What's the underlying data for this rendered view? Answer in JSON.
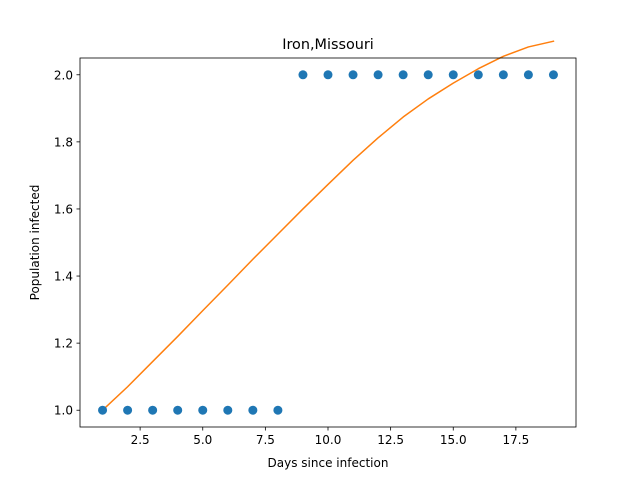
{
  "chart_data": {
    "type": "scatter",
    "title": "Iron,Missouri",
    "xlabel": "Days since infection",
    "ylabel": "Population infected",
    "xlim": [
      0.1,
      19.9
    ],
    "ylim": [
      0.95,
      2.05
    ],
    "x_ticks": [
      2.5,
      5.0,
      7.5,
      10.0,
      12.5,
      15.0,
      17.5
    ],
    "x_tick_labels": [
      "2.5",
      "5.0",
      "7.5",
      "10.0",
      "12.5",
      "15.0",
      "17.5"
    ],
    "y_ticks": [
      1.0,
      1.2,
      1.4,
      1.6,
      1.8,
      2.0
    ],
    "y_tick_labels": [
      "1.0",
      "1.2",
      "1.4",
      "1.6",
      "1.8",
      "2.0"
    ],
    "grid": false,
    "colors": {
      "points": "#1f77b4",
      "fit": "#ff7f0e"
    },
    "series": [
      {
        "kind": "scatter",
        "x": [
          1,
          2,
          3,
          4,
          5,
          6,
          7,
          8,
          9,
          10,
          11,
          12,
          13,
          14,
          15,
          16,
          17,
          18,
          19
        ],
        "y": [
          1,
          1,
          1,
          1,
          1,
          1,
          1,
          1,
          2,
          2,
          2,
          2,
          2,
          2,
          2,
          2,
          2,
          2,
          2
        ]
      },
      {
        "kind": "line",
        "x": [
          1,
          2,
          3,
          4,
          5,
          6,
          7,
          8,
          9,
          10,
          11,
          12,
          13,
          14,
          15,
          16,
          17,
          18,
          19
        ],
        "y": [
          1.0,
          1.07,
          1.145,
          1.22,
          1.297,
          1.373,
          1.45,
          1.525,
          1.6,
          1.673,
          1.745,
          1.812,
          1.874,
          1.928,
          1.975,
          2.018,
          2.055,
          2.083,
          2.1
        ]
      }
    ]
  }
}
